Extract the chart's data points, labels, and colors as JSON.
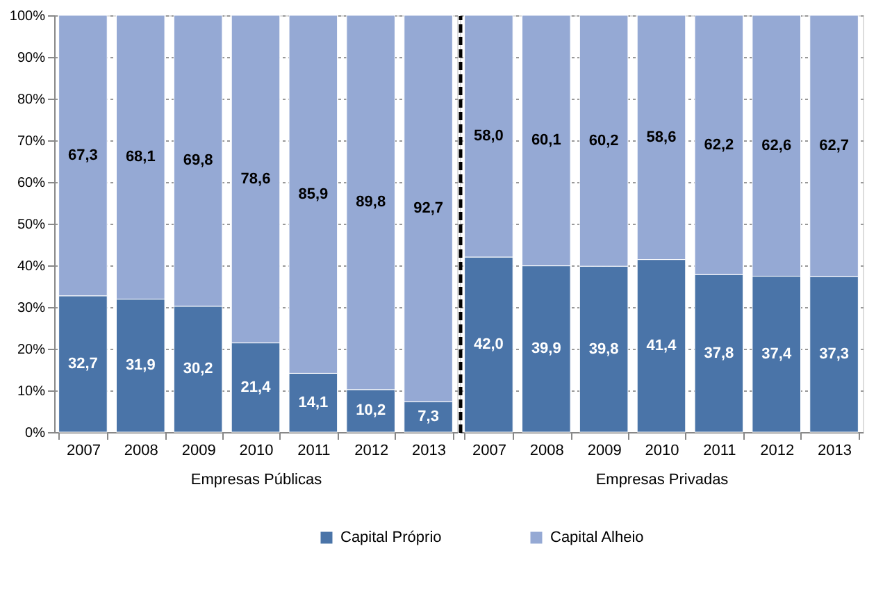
{
  "chart_data": [
    {
      "type": "bar",
      "stacked": true,
      "xlabel": "Empresas Públicas",
      "categories": [
        "2007",
        "2008",
        "2009",
        "2010",
        "2011",
        "2012",
        "2013"
      ],
      "ylim": [
        0,
        100
      ],
      "yticks": [
        {
          "value": 0,
          "label": "0%"
        },
        {
          "value": 10,
          "label": "10%"
        },
        {
          "value": 20,
          "label": "20%"
        },
        {
          "value": 30,
          "label": "30%"
        },
        {
          "value": 40,
          "label": "40%"
        },
        {
          "value": 50,
          "label": "50%"
        },
        {
          "value": 60,
          "label": "60%"
        },
        {
          "value": 70,
          "label": "70%"
        },
        {
          "value": 80,
          "label": "80%"
        },
        {
          "value": 90,
          "label": "90%"
        },
        {
          "value": 100,
          "label": "100%"
        }
      ],
      "grid": "y",
      "legend": "bottom",
      "series": [
        {
          "name": "Capital Próprio",
          "color": "#4a74a8",
          "values": [
            32.7,
            31.9,
            30.2,
            21.4,
            14.1,
            10.2,
            7.3
          ],
          "value_labels": [
            "32,7",
            "31,9",
            "30,2",
            "21,4",
            "14,1",
            "10,2",
            "7,3"
          ]
        },
        {
          "name": "Capital Alheio",
          "color": "#95a9d4",
          "values": [
            67.3,
            68.1,
            69.8,
            78.6,
            85.9,
            89.8,
            92.7
          ],
          "value_labels": [
            "67,3",
            "68,1",
            "69,8",
            "78,6",
            "85,9",
            "89,8",
            "92,7"
          ]
        }
      ]
    },
    {
      "type": "bar",
      "stacked": true,
      "xlabel": "Empresas Privadas",
      "categories": [
        "2007",
        "2008",
        "2009",
        "2010",
        "2011",
        "2012",
        "2013"
      ],
      "ylim": [
        0,
        100
      ],
      "yticks": [
        0,
        10,
        20,
        30,
        40,
        50,
        60,
        70,
        80,
        90,
        100
      ],
      "tick_labels": "x",
      "grid": "y",
      "legend": "bottom",
      "series": [
        {
          "name": "Capital Próprio",
          "color": "#4a74a8",
          "values": [
            42.0,
            39.9,
            39.8,
            41.4,
            37.8,
            37.4,
            37.3
          ],
          "value_labels": [
            "42,0",
            "39,9",
            "39,8",
            "41,4",
            "37,8",
            "37,4",
            "37,3"
          ]
        },
        {
          "name": "Capital Alheio",
          "color": "#95a9d4",
          "values": [
            58.0,
            60.1,
            60.2,
            58.6,
            62.2,
            62.6,
            62.7
          ],
          "value_labels": [
            "58,0",
            "60,1",
            "60,2",
            "58,6",
            "62,2",
            "62,6",
            "62,7"
          ]
        }
      ]
    }
  ]
}
